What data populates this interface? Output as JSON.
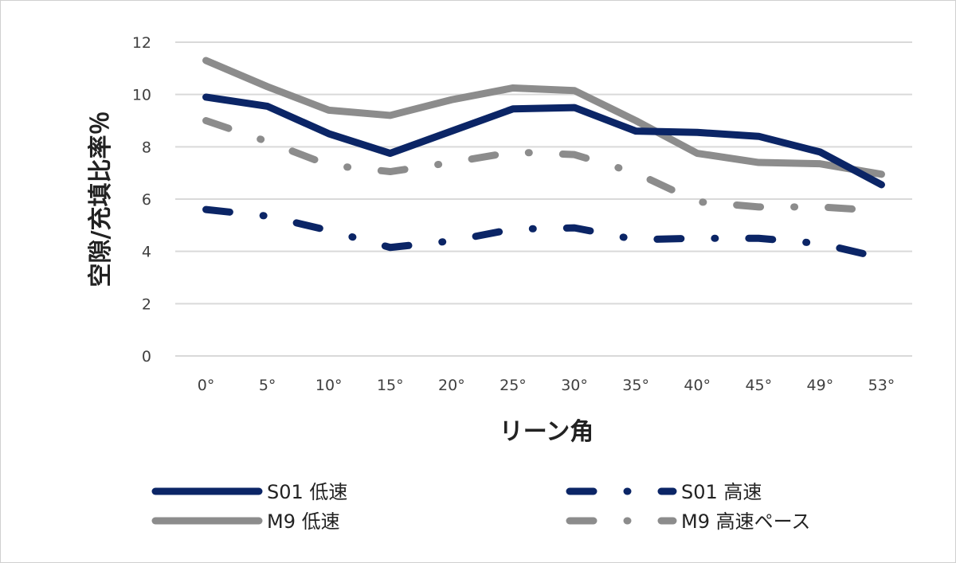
{
  "chart_data": {
    "type": "line",
    "title": "",
    "xlabel": "リーン角",
    "ylabel": "空隙/充填比率％",
    "ylim": [
      0,
      12
    ],
    "yticks": [
      0,
      2,
      4,
      6,
      8,
      10,
      12
    ],
    "grid": true,
    "legend_position": "bottom",
    "categories": [
      "0°",
      "5°",
      "10°",
      "15°",
      "20°",
      "25°",
      "30°",
      "35°",
      "40°",
      "45°",
      "49°",
      "53°"
    ],
    "series": [
      {
        "name": "S01 低速",
        "color": "#0b2566",
        "style": "solid",
        "values": [
          9.9,
          9.55,
          8.5,
          7.75,
          8.6,
          9.45,
          9.5,
          8.6,
          8.55,
          8.4,
          7.8,
          6.55
        ]
      },
      {
        "name": "S01 高速",
        "color": "#0b2566",
        "style": "dash-dot",
        "values": [
          5.6,
          5.35,
          4.8,
          4.15,
          4.4,
          4.85,
          4.9,
          4.45,
          4.5,
          4.5,
          4.3,
          3.75
        ]
      },
      {
        "name": "M9 低速",
        "color": "#8c8c8c",
        "style": "solid",
        "values": [
          11.3,
          10.3,
          9.4,
          9.2,
          9.8,
          10.25,
          10.15,
          9.0,
          7.75,
          7.4,
          7.35,
          6.95
        ]
      },
      {
        "name": "M9 高速ペース",
        "color": "#8c8c8c",
        "style": "dash-dot",
        "values": [
          9.0,
          8.2,
          7.3,
          7.05,
          7.4,
          7.8,
          7.7,
          7.0,
          5.9,
          5.7,
          5.7,
          5.55
        ]
      }
    ]
  }
}
